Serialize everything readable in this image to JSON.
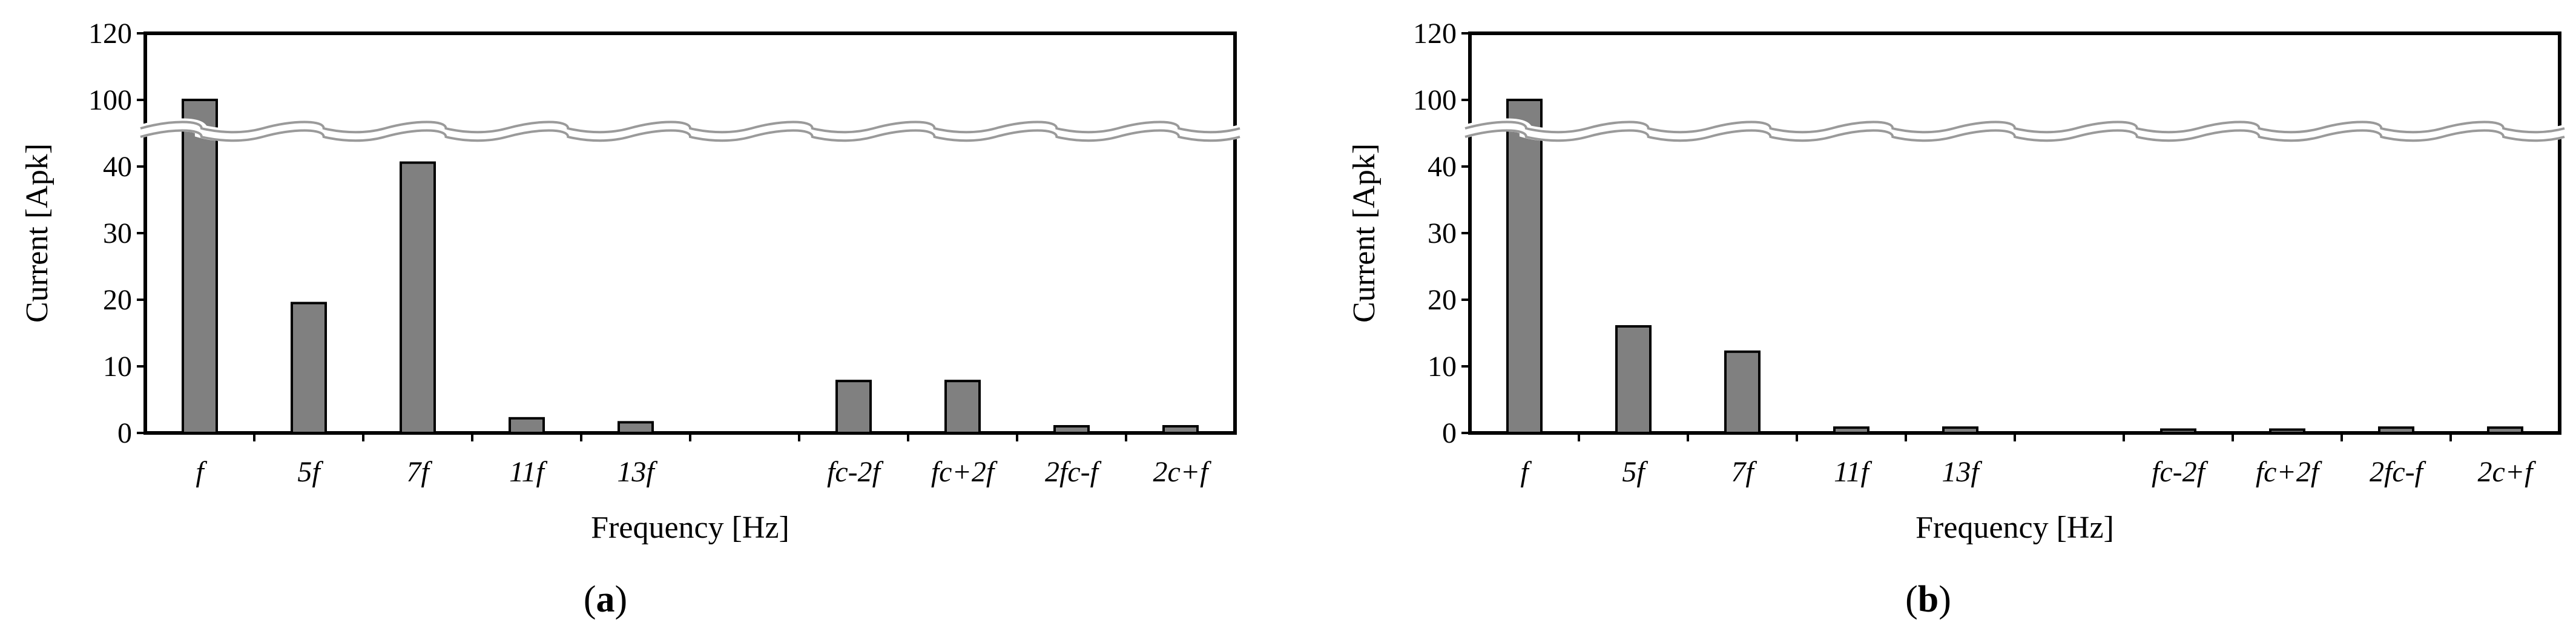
{
  "colors": {
    "bar_fill": "#808080",
    "bar_stroke": "#000000",
    "axis": "#000000",
    "break_line": "#9a9a9a"
  },
  "chart_data": [
    {
      "type": "bar",
      "panel_label": {
        "open": "(",
        "letter": "a",
        "close": ")"
      },
      "xlabel": "Frequency [Hz]",
      "ylabel": "Current [Apk]",
      "categories": [
        "f",
        "5f",
        "7f",
        "11f",
        "13f",
        "",
        "fc-2f",
        "fc+2f",
        "2fc-f",
        "2c+f"
      ],
      "values": [
        100,
        19.5,
        43.5,
        2.2,
        1.6,
        0,
        7.8,
        7.8,
        1.0,
        1.0
      ],
      "y_ticks": [
        "0",
        "10",
        "20",
        "30",
        "40",
        "100",
        "120"
      ],
      "ylim": [
        0,
        120
      ],
      "axis_break": "between 40 and 100",
      "grid": false,
      "legend": "none"
    },
    {
      "type": "bar",
      "panel_label": {
        "open": "(",
        "letter": "b",
        "close": ")"
      },
      "xlabel": "Frequency [Hz]",
      "ylabel": "Current [Apk]",
      "categories": [
        "f",
        "5f",
        "7f",
        "11f",
        "13f",
        "",
        "fc-2f",
        "fc+2f",
        "2fc-f",
        "2c+f"
      ],
      "values": [
        100,
        16.0,
        12.2,
        0.8,
        0.8,
        0,
        0.5,
        0.5,
        0.8,
        0.8
      ],
      "y_ticks": [
        "0",
        "10",
        "20",
        "30",
        "40",
        "100",
        "120"
      ],
      "ylim": [
        0,
        120
      ],
      "axis_break": "between 40 and 100",
      "grid": false,
      "legend": "none"
    }
  ]
}
